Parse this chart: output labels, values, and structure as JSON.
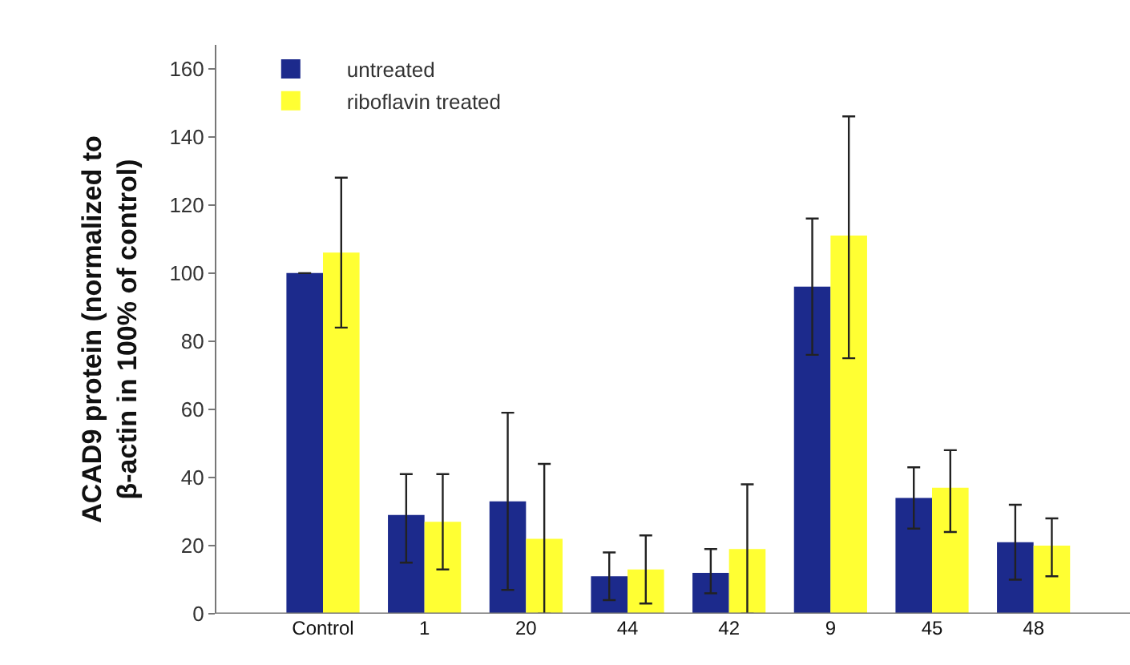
{
  "chart_data": {
    "type": "bar",
    "ylabel": "ACAD9 protein (normalized to\nβ-actin in 100% of control)",
    "categories": [
      "Control",
      "1",
      "20",
      "44",
      "42",
      "9",
      "45",
      "48"
    ],
    "series": [
      {
        "name": "untreated",
        "color": "#1c2a8c",
        "values": [
          100,
          29,
          33,
          11,
          12,
          96,
          34,
          21
        ],
        "errors": [
          null,
          [
            15,
            41
          ],
          [
            7,
            59
          ],
          [
            4,
            18
          ],
          [
            6,
            19
          ],
          [
            76,
            116
          ],
          [
            25,
            43
          ],
          [
            10,
            32
          ]
        ]
      },
      {
        "name": "riboflavin treated",
        "color": "#ffff33",
        "values": [
          106,
          27,
          22,
          13,
          19,
          111,
          37,
          20
        ],
        "errors": [
          [
            84,
            128
          ],
          [
            13,
            41
          ],
          [
            0,
            44
          ],
          [
            3,
            23
          ],
          [
            0,
            38
          ],
          [
            75,
            146
          ],
          [
            24,
            48
          ],
          [
            11,
            28
          ]
        ]
      }
    ],
    "ylim": [
      0,
      167
    ],
    "yticks": [
      0,
      20,
      40,
      60,
      80,
      100,
      120,
      140,
      160
    ],
    "legend": "top left"
  }
}
